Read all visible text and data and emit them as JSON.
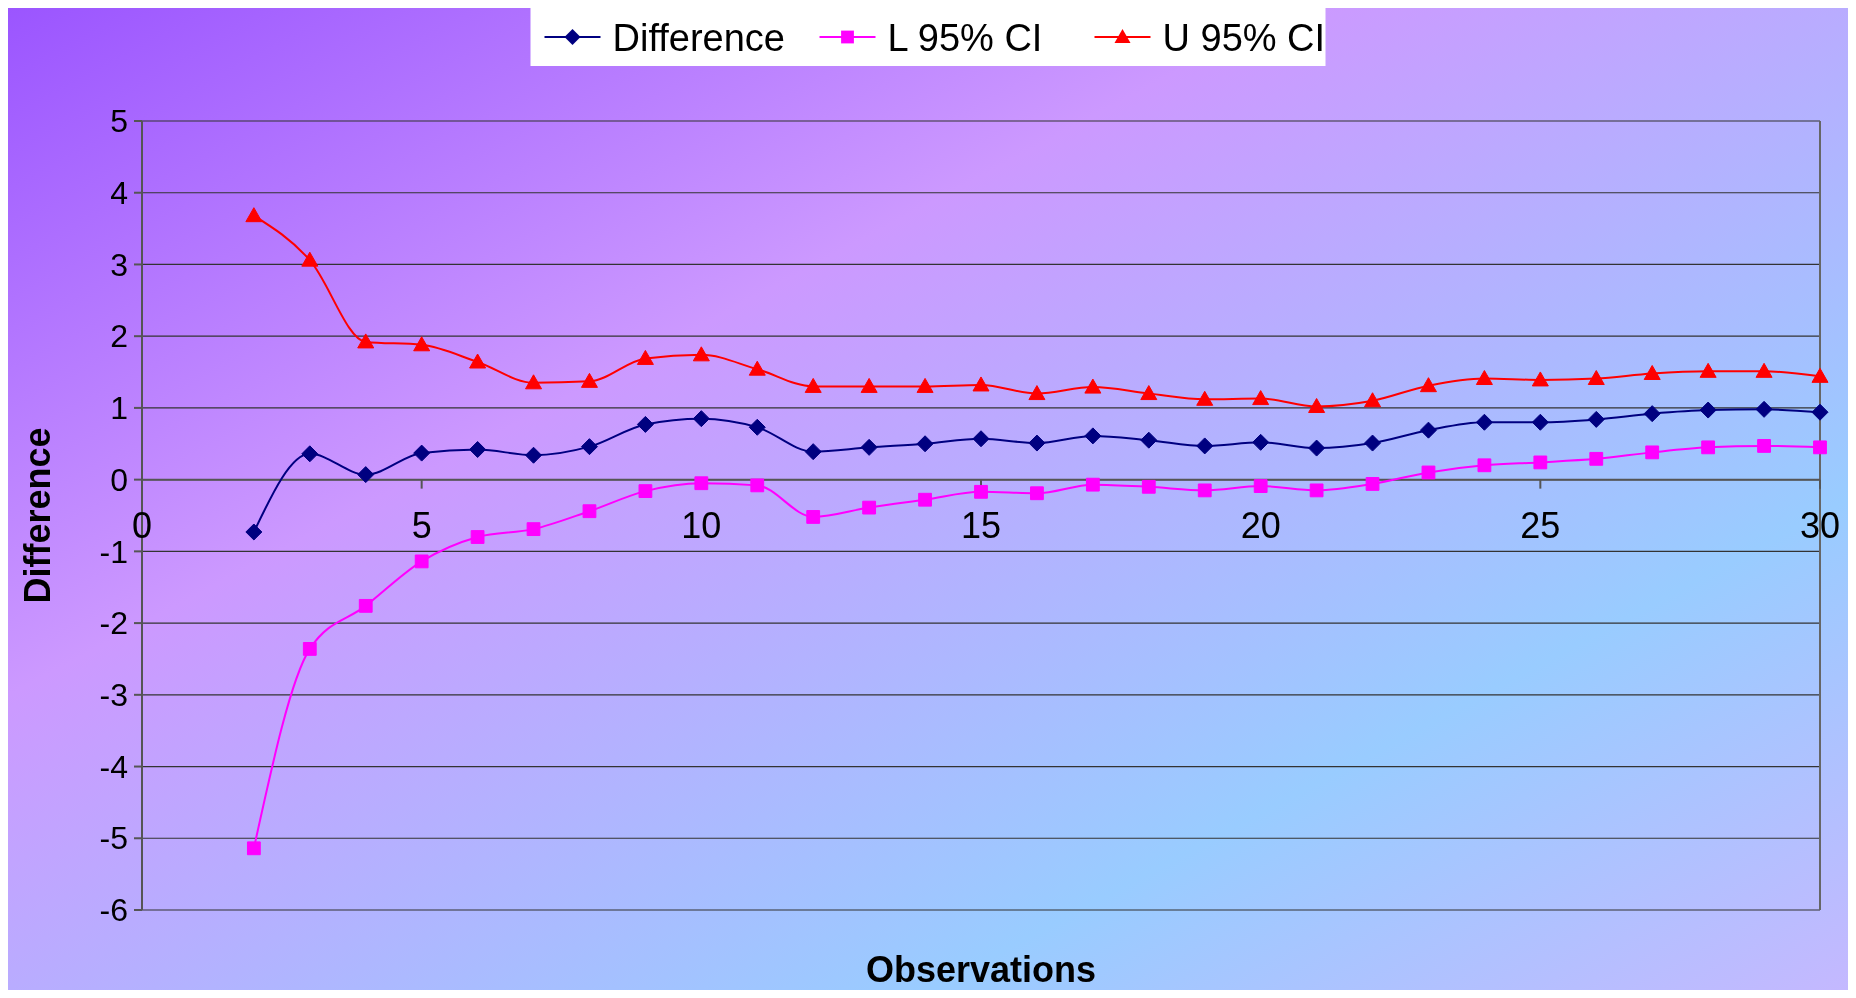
{
  "chart_data": {
    "type": "line",
    "xlabel": "Observations",
    "ylabel": "Difference",
    "x": [
      2,
      3,
      4,
      5,
      6,
      7,
      8,
      9,
      10,
      11,
      12,
      13,
      14,
      15,
      16,
      17,
      18,
      19,
      20,
      21,
      22,
      23,
      24,
      25,
      26,
      27,
      28,
      29,
      30
    ],
    "series": [
      {
        "name": "Difference",
        "color": "#000080",
        "marker": "diamond",
        "values": [
          -0.73,
          0.36,
          0.07,
          0.37,
          0.42,
          0.34,
          0.46,
          0.77,
          0.85,
          0.73,
          0.39,
          0.45,
          0.5,
          0.57,
          0.51,
          0.61,
          0.55,
          0.47,
          0.52,
          0.44,
          0.51,
          0.69,
          0.8,
          0.8,
          0.84,
          0.92,
          0.97,
          0.98,
          0.94
        ]
      },
      {
        "name": "L 95% CI",
        "color": "#ff00ff",
        "marker": "square",
        "values": [
          -5.14,
          -2.36,
          -1.76,
          -1.14,
          -0.8,
          -0.69,
          -0.44,
          -0.16,
          -0.05,
          -0.08,
          -0.52,
          -0.39,
          -0.28,
          -0.17,
          -0.19,
          -0.07,
          -0.1,
          -0.15,
          -0.09,
          -0.15,
          -0.06,
          0.1,
          0.2,
          0.24,
          0.29,
          0.38,
          0.45,
          0.47,
          0.45
        ]
      },
      {
        "name": "U 95% CI",
        "color": "#ff0000",
        "marker": "triangle",
        "values": [
          3.68,
          3.06,
          1.92,
          1.88,
          1.64,
          1.35,
          1.37,
          1.69,
          1.74,
          1.54,
          1.3,
          1.3,
          1.3,
          1.32,
          1.2,
          1.29,
          1.2,
          1.12,
          1.13,
          1.02,
          1.1,
          1.31,
          1.41,
          1.39,
          1.41,
          1.48,
          1.51,
          1.51,
          1.44
        ]
      }
    ],
    "xlim": [
      0,
      30
    ],
    "xticks": [
      0,
      5,
      10,
      15,
      20,
      25,
      30
    ],
    "ylim": [
      -6,
      5
    ],
    "yticks": [
      -6,
      -5,
      -4,
      -3,
      -2,
      -1,
      0,
      1,
      2,
      3,
      4,
      5
    ],
    "grid": "y",
    "legend": "top",
    "line_style": "solid"
  }
}
